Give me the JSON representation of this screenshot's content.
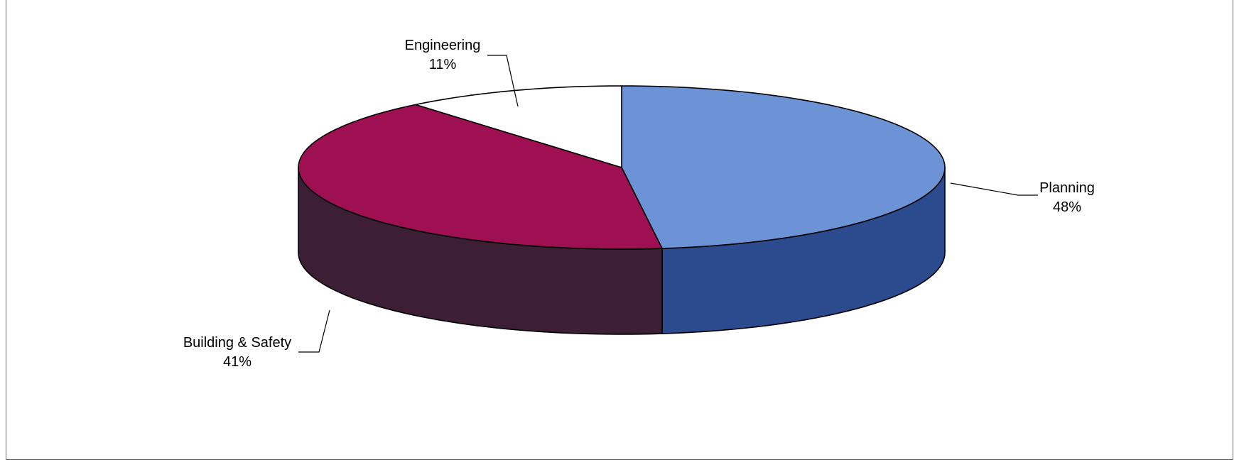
{
  "chart_data": {
    "type": "pie",
    "style": "3d",
    "title": "",
    "slices": [
      {
        "label": "Planning",
        "percent_label": "48%",
        "value": 48,
        "top_color": "#6b93d6",
        "side_color": "#2c4a8e"
      },
      {
        "label": "Building & Safety",
        "percent_label": "41%",
        "value": 41,
        "top_color": "#9e1052",
        "side_color": "#3c1f34"
      },
      {
        "label": "Engineering",
        "percent_label": "11%",
        "value": 11,
        "top_color": "#ffffff",
        "side_color": "#dcdcdc"
      }
    ],
    "legend": "none",
    "labels": "outside-with-leader-lines"
  }
}
